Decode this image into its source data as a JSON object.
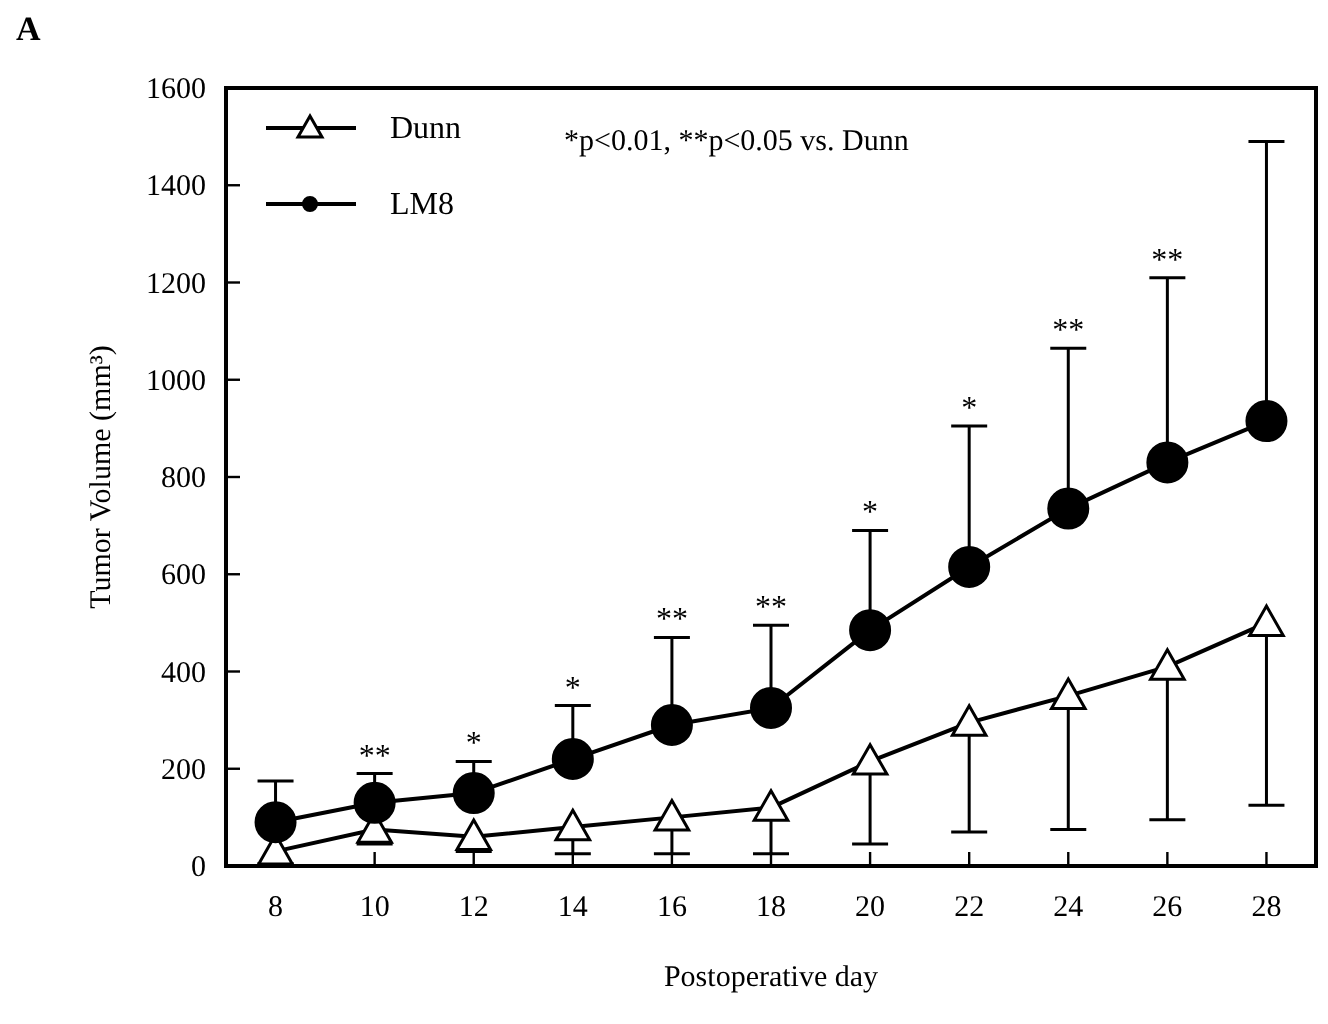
{
  "chart_data": {
    "type": "line",
    "xlabel": "Postoperative day",
    "ylabel": "Tumor Volume (mm³)",
    "x": [
      8,
      10,
      12,
      14,
      16,
      18,
      20,
      22,
      24,
      26,
      28
    ],
    "xlim": [
      7,
      29
    ],
    "xticks": [
      8,
      10,
      12,
      14,
      16,
      18,
      20,
      22,
      24,
      26,
      28
    ],
    "ylim": [
      0,
      1600
    ],
    "yticks": [
      0,
      200,
      400,
      600,
      800,
      1000,
      1200,
      1400,
      1600
    ],
    "grid": false,
    "legend": "top left",
    "line_style": "solid",
    "series": [
      {
        "name": "Dunn",
        "color": "#000000",
        "marker": "triangle",
        "values": [
          30,
          75,
          60,
          80,
          100,
          120,
          215,
          295,
          350,
          410,
          500
        ],
        "errors": [
          [
            5,
            30
          ],
          [
            45,
            75
          ],
          [
            30,
            60
          ],
          [
            25,
            80
          ],
          [
            25,
            100
          ],
          [
            25,
            120
          ],
          [
            45,
            215
          ],
          [
            70,
            295
          ],
          [
            75,
            350
          ],
          [
            95,
            410
          ],
          [
            125,
            500
          ]
        ]
      },
      {
        "name": "LM8",
        "color": "#000000",
        "marker": "circle",
        "values": [
          90,
          130,
          150,
          220,
          290,
          325,
          485,
          615,
          735,
          830,
          915
        ],
        "errors": [
          [
            90,
            175
          ],
          [
            130,
            190
          ],
          [
            150,
            215
          ],
          [
            220,
            330
          ],
          [
            290,
            470
          ],
          [
            325,
            495
          ],
          [
            485,
            690
          ],
          [
            615,
            905
          ],
          [
            735,
            1065
          ],
          [
            830,
            1210
          ],
          [
            915,
            1490
          ]
        ]
      }
    ],
    "annotations": [
      "A",
      "*p<0.01, **p<0.05 vs. Dunn",
      {
        "text": "**",
        "x": 10,
        "y": 190
      },
      {
        "text": "*",
        "x": 12,
        "y": 215
      },
      {
        "text": "*",
        "x": 14,
        "y": 330
      },
      {
        "text": "**",
        "x": 16,
        "y": 470
      },
      {
        "text": "**",
        "x": 18,
        "y": 495
      },
      {
        "text": "*",
        "x": 20,
        "y": 690
      },
      {
        "text": "*",
        "x": 22,
        "y": 905
      },
      {
        "text": "**",
        "x": 24,
        "y": 1065
      },
      {
        "text": "**",
        "x": 26,
        "y": 1210
      }
    ]
  }
}
